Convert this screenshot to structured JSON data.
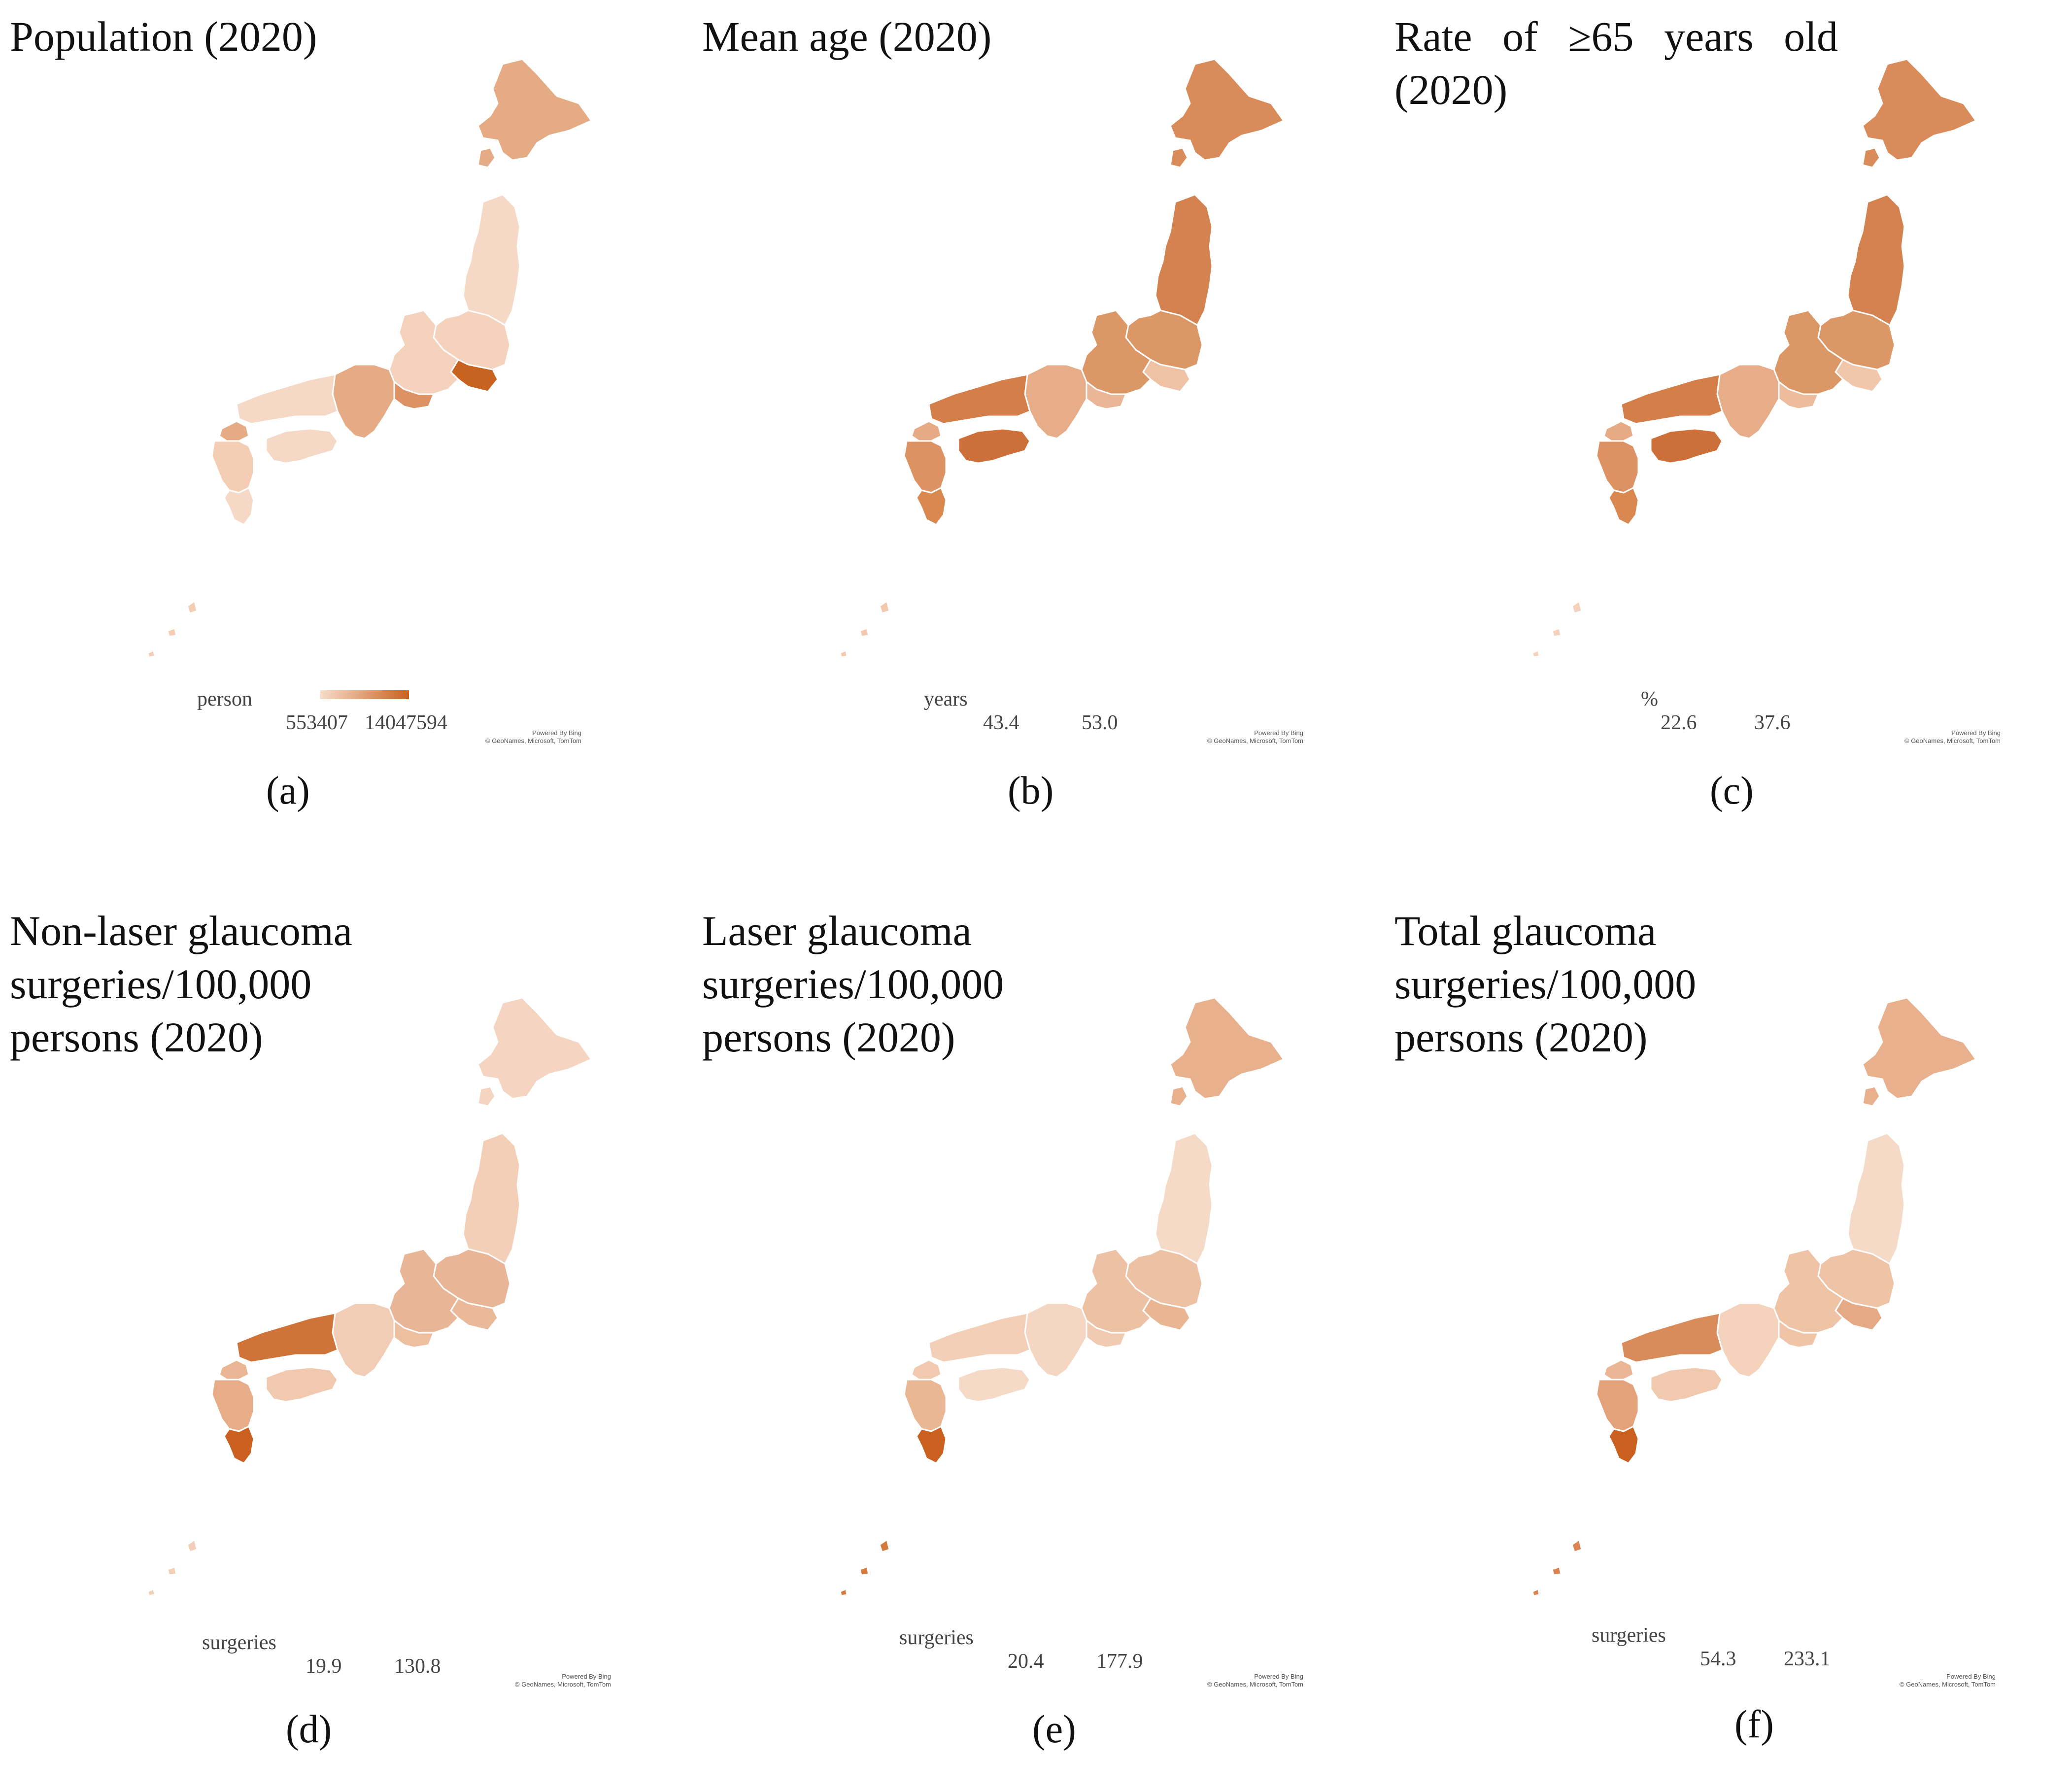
{
  "panels": [
    {
      "id": "a",
      "title": "Population (2020)",
      "legend_unit": "person",
      "min_label": "553407",
      "max_label": "14047594",
      "credit_line1": "Powered By Bing",
      "credit_line2": "© GeoNames, Microsoft, TomTom",
      "caption": "(a)",
      "shades": {
        "hokkaido": "#e4ab84",
        "tohoku": "#f6d8c6",
        "north_kanto": "#f4d2bc",
        "tokyo": "#c8621f",
        "kansai": "#e4ab84",
        "aichi": "#dc9264",
        "chugoku": "#f6d8c6",
        "shikoku": "#f6d8c6",
        "kyushu": "#f3cdb4",
        "fukuoka": "#e4ab84",
        "south": "#f6d8c6",
        "okinawa": "#f3cdb4"
      }
    },
    {
      "id": "b",
      "title": "Mean age (2020)",
      "legend_unit": "years",
      "min_label": "43.4",
      "max_label": "53.0",
      "credit_line1": "Powered By Bing",
      "credit_line2": "© GeoNames, Microsoft, TomTom",
      "caption": "(b)",
      "shades": {
        "hokkaido": "#d98c5a",
        "tohoku": "#d38250",
        "north_kanto": "#dc9767",
        "tokyo": "#efc2a5",
        "kansai": "#e6ad88",
        "aichi": "#eab696",
        "chugoku": "#d47e4a",
        "shikoku": "#cd6f38",
        "kyushu": "#dc9262",
        "fukuoka": "#e6aa84",
        "south": "#d9884f",
        "okinawa": "#f2c9ae"
      }
    },
    {
      "id": "c",
      "title": "Rate of ≥65 years old (2020)",
      "legend_unit": "%",
      "min_label": "22.6",
      "max_label": "37.6",
      "credit_line1": "Powered By Bing",
      "credit_line2": "© GeoNames, Microsoft, TomTom",
      "caption": "(c)",
      "shades": {
        "hokkaido": "#d98c5a",
        "tohoku": "#d38250",
        "north_kanto": "#dc9767",
        "tokyo": "#f1c7ab",
        "kansai": "#e6ad88",
        "aichi": "#ecbc9d",
        "chugoku": "#d47e4a",
        "shikoku": "#cd6f38",
        "kyushu": "#dc9262",
        "fukuoka": "#e6aa84",
        "south": "#d9884f",
        "okinawa": "#f4d2bc"
      }
    },
    {
      "id": "d",
      "title": "Non-laser glaucoma\nsurgeries/100,000\npersons (2020)",
      "legend_unit": "surgeries",
      "min_label": "19.9",
      "max_label": "130.8",
      "credit_line1": "Powered By Bing",
      "credit_line2": "© GeoNames, Microsoft, TomTom",
      "caption": "(d)",
      "shades": {
        "hokkaido": "#f5d5c2",
        "tohoku": "#f3cfb8",
        "north_kanto": "#e8b696",
        "tokyo": "#eab999",
        "kansai": "#f2cdb5",
        "aichi": "#eebf9f",
        "chugoku": "#cf7339",
        "shikoku": "#f1c9ae",
        "kyushu": "#e7ad88",
        "fukuoka": "#eab696",
        "south": "#c9601f",
        "okinawa": "#f3cfb8"
      }
    },
    {
      "id": "e",
      "title": "Laser glaucoma\nsurgeries/100,000\npersons (2020)",
      "legend_unit": "surgeries",
      "min_label": "20.4",
      "max_label": "177.9",
      "credit_line1": "Powered By Bing",
      "credit_line2": "© GeoNames, Microsoft, TomTom",
      "caption": "(e)",
      "shades": {
        "hokkaido": "#e8b08c",
        "tohoku": "#f6dac8",
        "north_kanto": "#edc1a3",
        "tokyo": "#e9b592",
        "kansai": "#f5d6c2",
        "aichi": "#f1cbb1",
        "chugoku": "#f3cfb8",
        "shikoku": "#f6dac8",
        "kyushu": "#eab794",
        "fukuoka": "#f1c9ae",
        "south": "#c9601f",
        "okinawa": "#d47a3e"
      }
    },
    {
      "id": "f",
      "title": "Total glaucoma\nsurgeries/100,000\npersons (2020)",
      "legend_unit": "surgeries",
      "min_label": "54.3",
      "max_label": "233.1",
      "credit_line1": "Powered By Bing",
      "credit_line2": "© GeoNames, Microsoft, TomTom",
      "caption": "(f)",
      "shades": {
        "hokkaido": "#e8b08c",
        "tohoku": "#f6dac8",
        "north_kanto": "#eec3a6",
        "tokyo": "#e5a985",
        "kansai": "#f4d2bc",
        "aichi": "#efc4a7",
        "chugoku": "#d98c5a",
        "shikoku": "#f1c9ae",
        "kyushu": "#e3a27a",
        "fukuoka": "#eab696",
        "south": "#c9601f",
        "okinawa": "#d98452"
      }
    }
  ],
  "legend_colors": {
    "low": "#f7dcc9",
    "high": "#c8621f"
  }
}
